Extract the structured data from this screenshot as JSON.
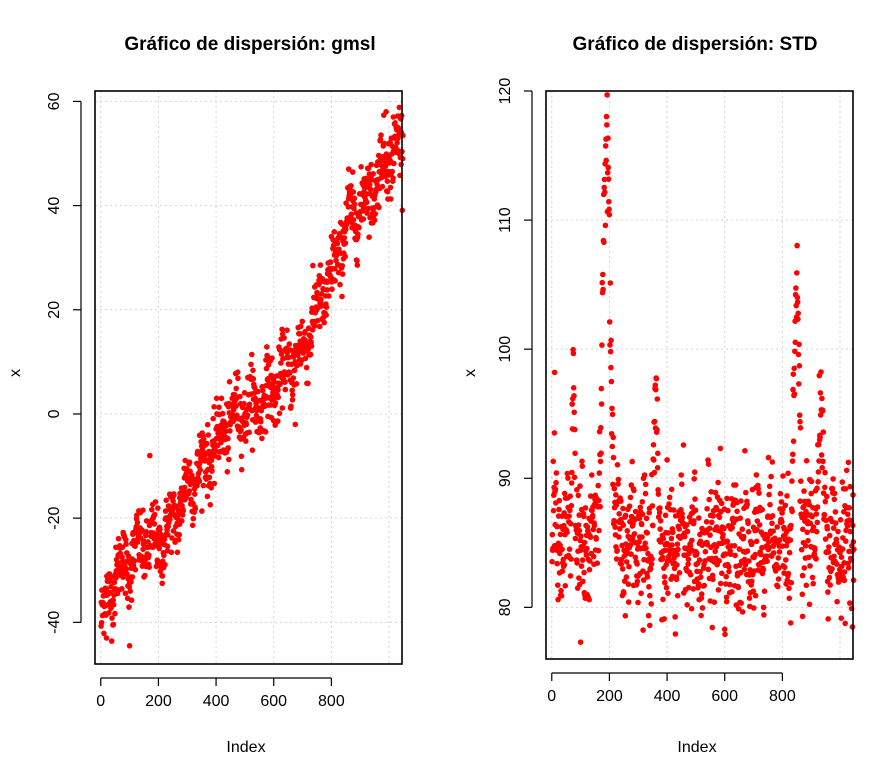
{
  "chart_data": [
    {
      "type": "scatter",
      "title": "Gráfico de dispersión:  gmsl",
      "xlabel": "Index",
      "ylabel": "x",
      "xlim": [
        -20,
        1045
      ],
      "ylim": [
        -48,
        62
      ],
      "xticks": [
        0,
        200,
        400,
        600,
        800
      ],
      "xtick_labels": [
        "0",
        "200",
        "400",
        "600",
        "800"
      ],
      "yticks": [
        -40,
        -20,
        0,
        20,
        40,
        60
      ],
      "ytick_labels": [
        "-40",
        "-20",
        "0",
        "20",
        "40",
        "60"
      ],
      "grid": true,
      "point_color": "#ff0000",
      "n_points": 1048,
      "trend": [
        [
          1,
          -40
        ],
        [
          20,
          -36
        ],
        [
          50,
          -31
        ],
        [
          100,
          -28
        ],
        [
          150,
          -25
        ],
        [
          200,
          -25
        ],
        [
          250,
          -21
        ],
        [
          300,
          -14
        ],
        [
          350,
          -10
        ],
        [
          400,
          -6
        ],
        [
          450,
          -1
        ],
        [
          500,
          1
        ],
        [
          550,
          2
        ],
        [
          600,
          5
        ],
        [
          650,
          9
        ],
        [
          700,
          12
        ],
        [
          750,
          20
        ],
        [
          800,
          26
        ],
        [
          850,
          36
        ],
        [
          900,
          40
        ],
        [
          950,
          44
        ],
        [
          1000,
          50
        ],
        [
          1048,
          52
        ]
      ],
      "spread": 3.2,
      "extremes": [
        [
          100,
          -44.5
        ],
        [
          20,
          -43
        ],
        [
          990,
          58
        ],
        [
          1015,
          57
        ],
        [
          675,
          -2
        ],
        [
          170,
          -8
        ],
        [
          860,
          47
        ]
      ]
    },
    {
      "type": "scatter",
      "title": "Gráfico de dispersión:  STD",
      "xlabel": "Index",
      "ylabel": "x",
      "xlim": [
        -20,
        1045
      ],
      "ylim": [
        76,
        120
      ],
      "xticks": [
        0,
        200,
        400,
        600,
        800
      ],
      "xtick_labels": [
        "0",
        "200",
        "400",
        "600",
        "800"
      ],
      "yticks": [
        80,
        90,
        100,
        110,
        120
      ],
      "ytick_labels": [
        "80",
        "90",
        "100",
        "110",
        "120"
      ],
      "grid": true,
      "point_color": "#ff0000",
      "n_points": 1048,
      "baseline": 85,
      "spread": 2.6,
      "peaks": [
        {
          "center": 190,
          "height": 119,
          "width": 14
        },
        {
          "center": 850,
          "height": 107,
          "width": 9
        },
        {
          "center": 75,
          "height": 101.8,
          "width": 4
        },
        {
          "center": 360,
          "height": 97,
          "width": 6
        },
        {
          "center": 935,
          "height": 94,
          "width": 10
        }
      ],
      "extremes": [
        [
          10,
          98.2
        ],
        [
          100,
          77.3
        ],
        [
          600,
          78.3
        ],
        [
          340,
          78.6
        ],
        [
          870,
          79.3
        ]
      ]
    }
  ]
}
